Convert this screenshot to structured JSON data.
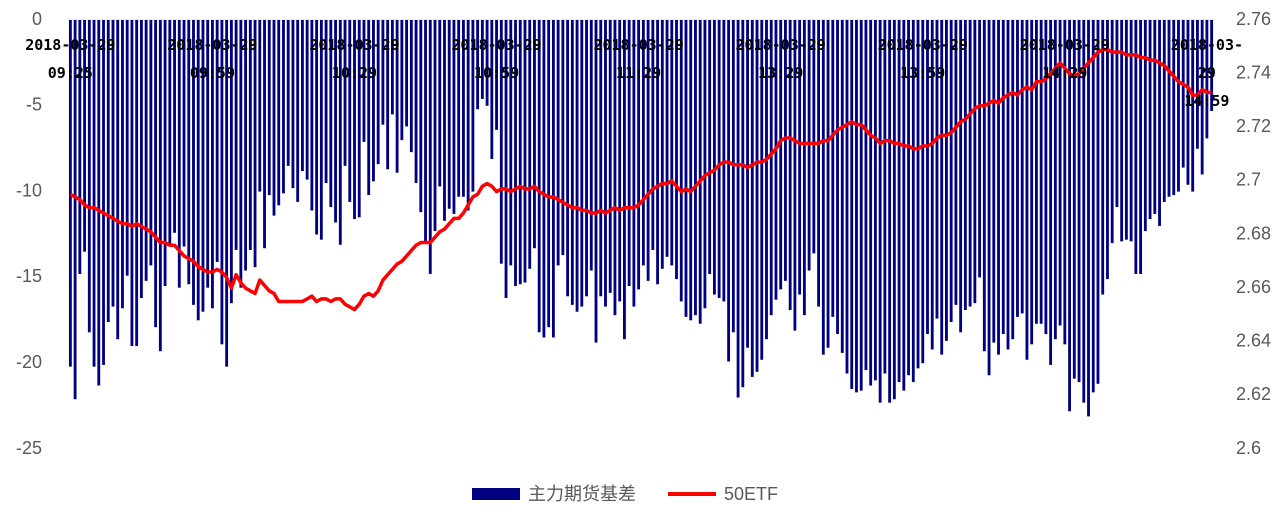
{
  "chart_data": {
    "type": "bar",
    "categories": [
      "2018-03-29\n09:25",
      null,
      null,
      null,
      null,
      null,
      null,
      null,
      null,
      null,
      null,
      null,
      null,
      null,
      null,
      null,
      null,
      null,
      null,
      null,
      null,
      null,
      null,
      null,
      null,
      null,
      null,
      null,
      null,
      null,
      "2018-03-29\n09:59",
      null,
      null,
      null,
      null,
      null,
      null,
      null,
      null,
      null,
      null,
      null,
      null,
      null,
      null,
      null,
      null,
      null,
      null,
      null,
      null,
      null,
      null,
      null,
      null,
      null,
      null,
      null,
      null,
      null,
      "2018-03-29\n10:29",
      null,
      null,
      null,
      null,
      null,
      null,
      null,
      null,
      null,
      null,
      null,
      null,
      null,
      null,
      null,
      null,
      null,
      null,
      null,
      null,
      null,
      null,
      null,
      null,
      null,
      null,
      null,
      null,
      null,
      "2018-03-29\n10:59",
      null,
      null,
      null,
      null,
      null,
      null,
      null,
      null,
      null,
      null,
      null,
      null,
      null,
      null,
      null,
      null,
      null,
      null,
      null,
      null,
      null,
      null,
      null,
      null,
      null,
      null,
      null,
      null,
      null,
      "2018-03-29\n11:29",
      null,
      null,
      null,
      null,
      null,
      null,
      null,
      null,
      null,
      null,
      null,
      null,
      null,
      null,
      null,
      null,
      null,
      null,
      null,
      null,
      null,
      null,
      null,
      null,
      null,
      null,
      null,
      null,
      null,
      "2018-03-29\n13:29",
      null,
      null,
      null,
      null,
      null,
      null,
      null,
      null,
      null,
      null,
      null,
      null,
      null,
      null,
      null,
      null,
      null,
      null,
      null,
      null,
      null,
      null,
      null,
      null,
      null,
      null,
      null,
      null,
      null,
      "2018-03-29\n13:59",
      null,
      null,
      null,
      null,
      null,
      null,
      null,
      null,
      null,
      null,
      null,
      null,
      null,
      null,
      null,
      null,
      null,
      null,
      null,
      null,
      null,
      null,
      null,
      null,
      null,
      null,
      null,
      null,
      null,
      "2018-03-29\n14:29",
      null,
      null,
      null,
      null,
      null,
      null,
      null,
      null,
      null,
      null,
      null,
      null,
      null,
      null,
      null,
      null,
      null,
      null,
      null,
      null,
      null,
      null,
      null,
      null,
      null,
      null,
      null,
      null,
      null,
      "2018-03-29\n14:59",
      null
    ],
    "series": [
      {
        "name": "主力期货基差",
        "type": "bar",
        "color": "#000080",
        "values": [
          -20.2,
          -22.1,
          -14.8,
          -13.5,
          -18.2,
          -20.2,
          -21.3,
          -20.1,
          -17.6,
          -16.7,
          -18.6,
          -16.8,
          -14.9,
          -19.0,
          -19.0,
          -16.2,
          -15.2,
          -14.3,
          -17.9,
          -19.3,
          -15.5,
          -13.2,
          -12.4,
          -15.6,
          -13.2,
          -15.4,
          -16.6,
          -17.5,
          -17.0,
          -15.6,
          -16.8,
          -14.1,
          -18.9,
          -20.2,
          -16.5,
          -13.4,
          -15.6,
          -14.6,
          -13.4,
          -14.4,
          -10.0,
          -13.3,
          -10.2,
          -11.4,
          -10.8,
          -10.1,
          -8.5,
          -9.8,
          -10.6,
          -8.8,
          -9.3,
          -11.1,
          -12.5,
          -12.8,
          -9.5,
          -10.9,
          -11.8,
          -13.1,
          -8.5,
          -10.6,
          -11.6,
          -11.5,
          -7.1,
          -10.2,
          -9.4,
          -8.4,
          -6.1,
          -8.7,
          -5.5,
          -8.9,
          -7.0,
          -6.2,
          -7.7,
          -9.5,
          -11.2,
          -12.9,
          -14.8,
          -12.3,
          -9.7,
          -11.7,
          -11.0,
          -11.3,
          -10.3,
          -10.3,
          -11.1,
          -10.0,
          -5.2,
          -4.6,
          -5.0,
          -8.1,
          -6.4,
          -14.2,
          -16.2,
          -14.3,
          -15.5,
          -15.4,
          -15.3,
          -14.5,
          -13.3,
          -18.2,
          -18.5,
          -17.9,
          -18.5,
          -14.3,
          -13.7,
          -16.1,
          -16.6,
          -17.0,
          -16.7,
          -16.1,
          -14.6,
          -18.8,
          -16.1,
          -16.7,
          -15.9,
          -17.2,
          -16.4,
          -18.6,
          -15.5,
          -16.7,
          -15.7,
          -14.3,
          -15.2,
          -13.4,
          -15.4,
          -14.5,
          -13.8,
          -14.3,
          -15.1,
          -16.4,
          -17.3,
          -17.5,
          -17.2,
          -17.7,
          -16.8,
          -14.8,
          -16.0,
          -16.2,
          -16.4,
          -19.9,
          -18.2,
          -22.0,
          -21.4,
          -19.1,
          -20.8,
          -20.5,
          -19.8,
          -18.6,
          -17.2,
          -16.3,
          -15.7,
          -15.2,
          -16.9,
          -18.1,
          -16.0,
          -17.2,
          -14.6,
          -13.6,
          -16.7,
          -19.5,
          -19.1,
          -17.3,
          -18.3,
          -19.4,
          -20.6,
          -21.5,
          -21.7,
          -21.6,
          -20.4,
          -21.3,
          -21.0,
          -22.3,
          -20.6,
          -22.3,
          -22.1,
          -21.1,
          -21.6,
          -20.7,
          -21.1,
          -20.3,
          -20.0,
          -18.3,
          -19.2,
          -17.4,
          -19.5,
          -18.7,
          -17.6,
          -16.6,
          -18.2,
          -16.9,
          -16.7,
          -16.5,
          -15.0,
          -19.3,
          -20.7,
          -18.8,
          -19.5,
          -18.3,
          -19.2,
          -18.6,
          -17.3,
          -17.1,
          -19.8,
          -18.9,
          -17.7,
          -17.7,
          -18.3,
          -20.1,
          -18.6,
          -17.8,
          -18.9,
          -22.8,
          -20.9,
          -21.1,
          -22.3,
          -23.1,
          -21.7,
          -21.2,
          -16.0,
          -15.1,
          -13.0,
          -10.9,
          -12.9,
          -12.8,
          -12.9,
          -14.8,
          -14.8,
          -12.3,
          -11.6,
          -11.3,
          -12.0,
          -10.6,
          -10.3,
          -10.2,
          -10.0,
          -8.6,
          -9.6,
          -10.0,
          -7.5,
          -9.0,
          -6.9,
          -5.3
        ]
      },
      {
        "name": "50ETF",
        "type": "line",
        "color": "#ff0000",
        "axis": "y2",
        "values": [
          2.695,
          2.694,
          2.693,
          2.691,
          2.69,
          2.69,
          2.689,
          2.688,
          2.687,
          2.686,
          2.685,
          2.684,
          2.684,
          2.683,
          2.684,
          2.683,
          2.682,
          2.681,
          2.679,
          2.677,
          2.677,
          2.676,
          2.676,
          2.674,
          2.672,
          2.671,
          2.67,
          2.668,
          2.667,
          2.666,
          2.666,
          2.667,
          2.666,
          2.664,
          2.66,
          2.665,
          2.662,
          2.66,
          2.659,
          2.658,
          2.663,
          2.661,
          2.659,
          2.658,
          2.655,
          2.655,
          2.655,
          2.655,
          2.655,
          2.655,
          2.656,
          2.657,
          2.655,
          2.656,
          2.656,
          2.655,
          2.656,
          2.656,
          2.654,
          2.653,
          2.652,
          2.654,
          2.657,
          2.658,
          2.657,
          2.659,
          2.663,
          2.665,
          2.667,
          2.669,
          2.67,
          2.672,
          2.674,
          2.676,
          2.677,
          2.677,
          2.677,
          2.679,
          2.681,
          2.682,
          2.684,
          2.686,
          2.686,
          2.688,
          2.691,
          2.694,
          2.695,
          2.698,
          2.699,
          2.698,
          2.696,
          2.697,
          2.697,
          2.696,
          2.697,
          2.698,
          2.697,
          2.697,
          2.698,
          2.696,
          2.695,
          2.694,
          2.694,
          2.693,
          2.692,
          2.691,
          2.69,
          2.69,
          2.689,
          2.689,
          2.688,
          2.688,
          2.689,
          2.688,
          2.689,
          2.69,
          2.689,
          2.69,
          2.69,
          2.69,
          2.691,
          2.693,
          2.695,
          2.697,
          2.698,
          2.699,
          2.699,
          2.7,
          2.698,
          2.696,
          2.697,
          2.696,
          2.698,
          2.7,
          2.702,
          2.703,
          2.704,
          2.706,
          2.707,
          2.707,
          2.706,
          2.706,
          2.706,
          2.705,
          2.706,
          2.707,
          2.707,
          2.708,
          2.71,
          2.712,
          2.715,
          2.716,
          2.716,
          2.715,
          2.714,
          2.714,
          2.714,
          2.714,
          2.714,
          2.715,
          2.715,
          2.717,
          2.719,
          2.72,
          2.721,
          2.722,
          2.721,
          2.721,
          2.719,
          2.717,
          2.716,
          2.714,
          2.715,
          2.715,
          2.714,
          2.714,
          2.713,
          2.713,
          2.712,
          2.712,
          2.713,
          2.713,
          2.714,
          2.716,
          2.717,
          2.717,
          2.718,
          2.72,
          2.722,
          2.723,
          2.725,
          2.727,
          2.728,
          2.728,
          2.729,
          2.73,
          2.729,
          2.731,
          2.732,
          2.733,
          2.732,
          2.734,
          2.735,
          2.734,
          2.737,
          2.737,
          2.738,
          2.74,
          2.742,
          2.744,
          2.742,
          2.74,
          2.739,
          2.74,
          2.742,
          2.744,
          2.746,
          2.748,
          2.749,
          2.749,
          2.748,
          2.748,
          2.748,
          2.747,
          2.747,
          2.747,
          2.746,
          2.746,
          2.745,
          2.745,
          2.744,
          2.743,
          2.741,
          2.739,
          2.737,
          2.736,
          2.735,
          2.732,
          2.732,
          2.734,
          2.733,
          2.733
        ]
      }
    ],
    "ylim": [
      -25,
      0
    ],
    "yticks": [
      0,
      -5,
      -10,
      -15,
      -20,
      -25
    ],
    "y2lim": [
      2.6,
      2.76
    ],
    "y2ticks": [
      2.6,
      2.62,
      2.64,
      2.66,
      2.68,
      2.7,
      2.72,
      2.74,
      2.76
    ],
    "legend": "bottom"
  }
}
